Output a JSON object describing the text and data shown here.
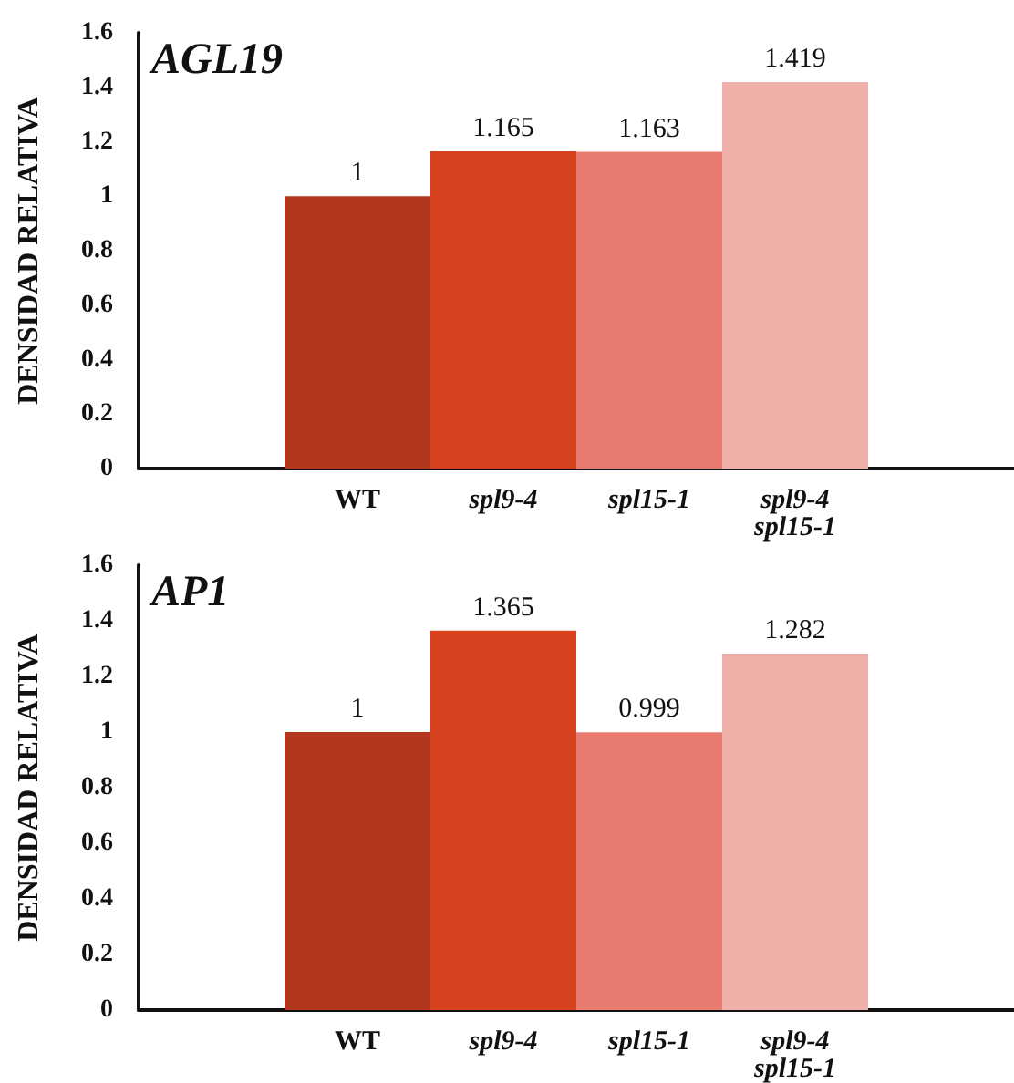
{
  "chart_data": [
    {
      "type": "bar",
      "title": "AGL19",
      "ylabel": "DENSIDAD RELATIVA",
      "categories": [
        null,
        "WT",
        "spl9-4",
        "spl15-1",
        "spl9-4\nspl15-1",
        null
      ],
      "values": [
        null,
        1,
        1.165,
        1.163,
        1.419,
        null
      ],
      "colors": [
        "#b3371c",
        "#b3371c",
        "#d8431f",
        "#e87a6f",
        "#f0b0aa",
        "#f0b0aa"
      ],
      "ylim": [
        0,
        1.6
      ],
      "yticks": [
        0,
        0.2,
        0.4,
        0.6,
        0.8,
        1,
        1.2,
        1.4,
        1.6
      ],
      "data_labels": true,
      "grid": false
    },
    {
      "type": "bar",
      "title": "AP1",
      "ylabel": "DENSIDAD RELATIVA",
      "categories": [
        null,
        "WT",
        "spl9-4",
        "spl15-1",
        "spl9-4\nspl15-1",
        null
      ],
      "values": [
        null,
        1,
        1.365,
        0.999,
        1.282,
        null
      ],
      "colors": [
        "#b3371c",
        "#b3371c",
        "#d8431f",
        "#e87a6f",
        "#f0b0aa",
        "#f0b0aa"
      ],
      "ylim": [
        0,
        1.6
      ],
      "yticks": [
        0,
        0.2,
        0.4,
        0.6,
        0.8,
        1,
        1.2,
        1.4,
        1.6
      ],
      "data_labels": true,
      "grid": false
    }
  ]
}
